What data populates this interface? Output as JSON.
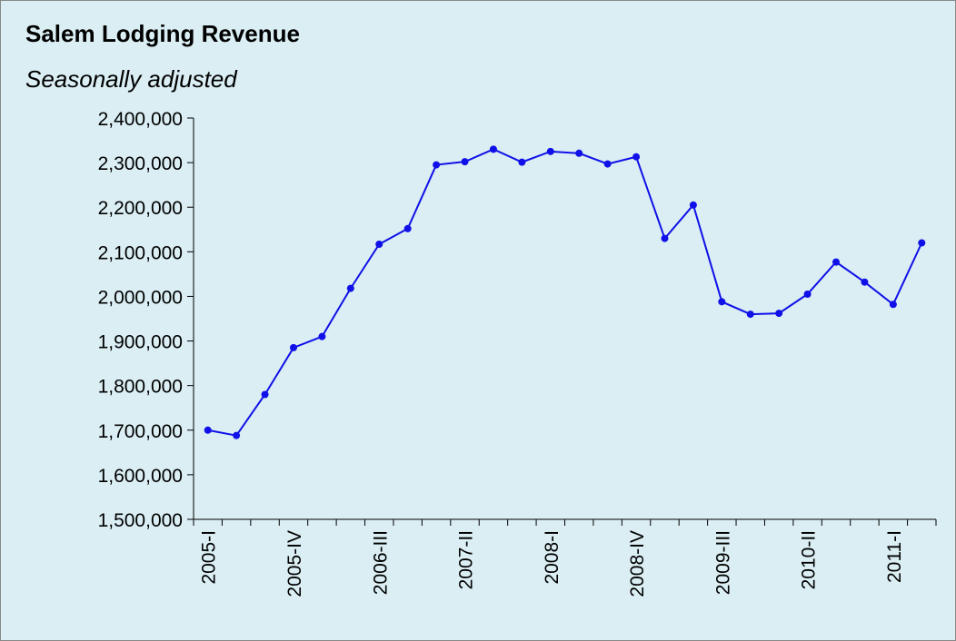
{
  "chart_data": {
    "type": "line",
    "title": "Salem Lodging Revenue",
    "subtitle": "Seasonally adjusted",
    "categories": [
      "2005-I",
      null,
      null,
      "2005-IV",
      null,
      null,
      "2006-III",
      null,
      null,
      "2007-II",
      null,
      null,
      "2008-I",
      null,
      null,
      "2008-IV",
      null,
      null,
      "2009-III",
      null,
      null,
      "2010-II",
      null,
      null,
      "2011-I",
      null
    ],
    "series": [
      {
        "name": "Salem Lodging Revenue",
        "color": "#1010e8",
        "values": [
          1700000,
          1688000,
          1780000,
          1885000,
          1910000,
          2018000,
          2117000,
          2152000,
          2295000,
          2302000,
          2330000,
          2301000,
          2325000,
          2321000,
          2297000,
          2313000,
          2130000,
          2205000,
          1988000,
          1960000,
          1962000,
          2005000,
          2077000,
          2032000,
          1982000,
          2120000
        ]
      }
    ],
    "ylim": [
      1500000,
      2400000
    ],
    "yticks": [
      {
        "value": 1500000,
        "label": "1,500,000"
      },
      {
        "value": 1600000,
        "label": "1,600,000"
      },
      {
        "value": 1700000,
        "label": "1,700,000"
      },
      {
        "value": 1800000,
        "label": "1,800,000"
      },
      {
        "value": 1900000,
        "label": "1,900,000"
      },
      {
        "value": 2000000,
        "label": "2,000,000"
      },
      {
        "value": 2100000,
        "label": "2,100,000"
      },
      {
        "value": 2200000,
        "label": "2,200,000"
      },
      {
        "value": 2300000,
        "label": "2,300,000"
      },
      {
        "value": 2400000,
        "label": "2,400,000"
      }
    ],
    "grid": false
  }
}
